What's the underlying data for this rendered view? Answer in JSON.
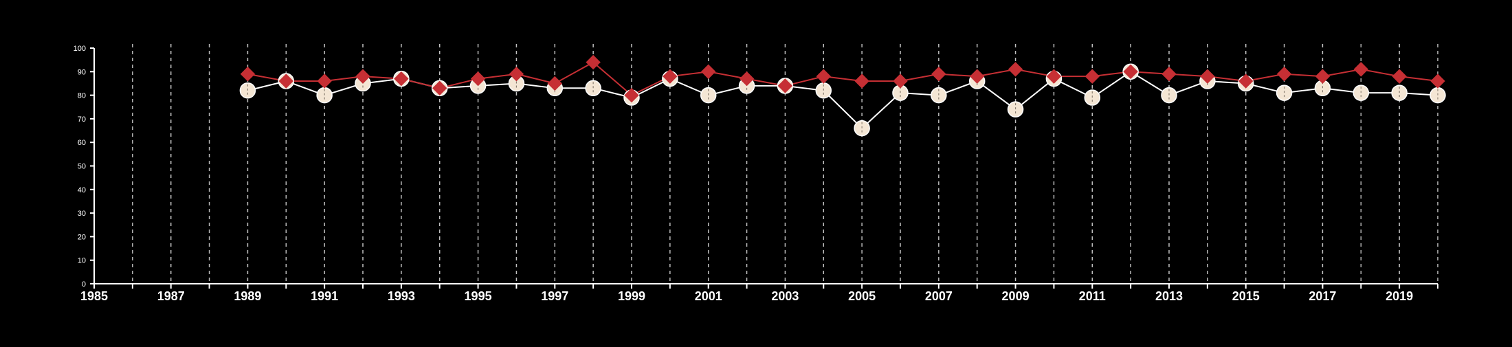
{
  "colors": {
    "background": "#000000",
    "axis": "#ffffff",
    "grid": "#bfbfbf",
    "series_a": "#c62f34",
    "series_b": "#f4e6d4",
    "series_b_line": "#ffffff"
  },
  "chart_data": {
    "type": "line",
    "title": "",
    "xlabel": "",
    "ylabel": "",
    "xlim": [
      1985,
      2020
    ],
    "ylim": [
      0,
      100
    ],
    "x_ticks": [
      1985,
      1987,
      1989,
      1991,
      1993,
      1995,
      1997,
      1999,
      2001,
      2003,
      2005,
      2007,
      2009,
      2011,
      2013,
      2015,
      2017,
      2019
    ],
    "y_ticks": [
      0,
      10,
      20,
      30,
      40,
      50,
      60,
      70,
      80,
      90,
      100
    ],
    "grid": "vertical dashed lines at every year",
    "x": [
      1989,
      1990,
      1991,
      1992,
      1993,
      1994,
      1995,
      1996,
      1997,
      1998,
      1999,
      2000,
      2001,
      2002,
      2003,
      2004,
      2005,
      2006,
      2007,
      2008,
      2009,
      2010,
      2011,
      2012,
      2013,
      2014,
      2015,
      2016,
      2017,
      2018,
      2019,
      2020
    ],
    "series": [
      {
        "marker": "diamond",
        "color": "#c62f34",
        "values": [
          89,
          86,
          86,
          88,
          87,
          83,
          87,
          89,
          85,
          94,
          80,
          88,
          90,
          87,
          84,
          88,
          86,
          86,
          89,
          88,
          91,
          88,
          88,
          90,
          89,
          88,
          86,
          89,
          88,
          91,
          88,
          86
        ]
      },
      {
        "marker": "circle",
        "color": "#f4e6d4",
        "values": [
          82,
          86,
          80,
          85,
          87,
          83,
          84,
          85,
          83,
          83,
          79,
          87,
          80,
          84,
          84,
          82,
          66,
          81,
          80,
          86,
          74,
          87,
          79,
          90,
          80,
          86,
          85,
          81,
          83,
          81,
          81,
          80
        ]
      }
    ]
  }
}
